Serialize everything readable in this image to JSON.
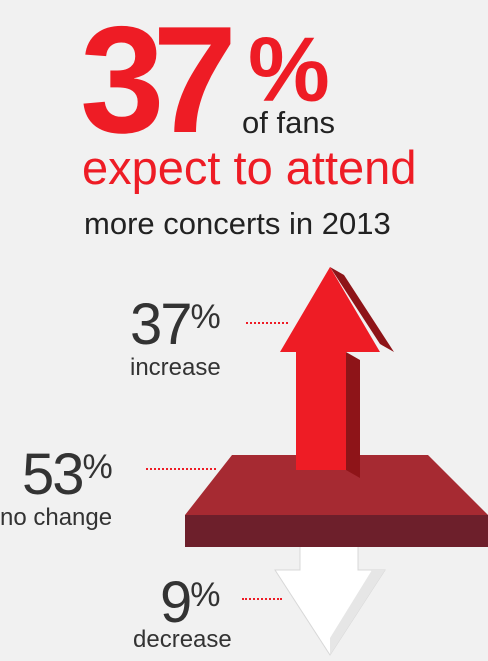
{
  "headline": {
    "big_number": "37",
    "percent_sign": "%",
    "of_text": "of fans",
    "expect_text": "expect to attend",
    "more_text": "more concerts in 2013"
  },
  "chart_data": {
    "type": "infographic",
    "unit": "%",
    "items": [
      {
        "value": 37,
        "label": "increase",
        "color": "#ee1c25"
      },
      {
        "value": 53,
        "label": "no change",
        "color": "#8b2c33"
      },
      {
        "value": 9,
        "label": "decrease",
        "color": "#ffffff"
      }
    ]
  },
  "colors": {
    "accent": "#ee1c25",
    "platform_top": "#a62a32",
    "platform_side": "#6d1f2b",
    "background": "#f1f1f1"
  }
}
